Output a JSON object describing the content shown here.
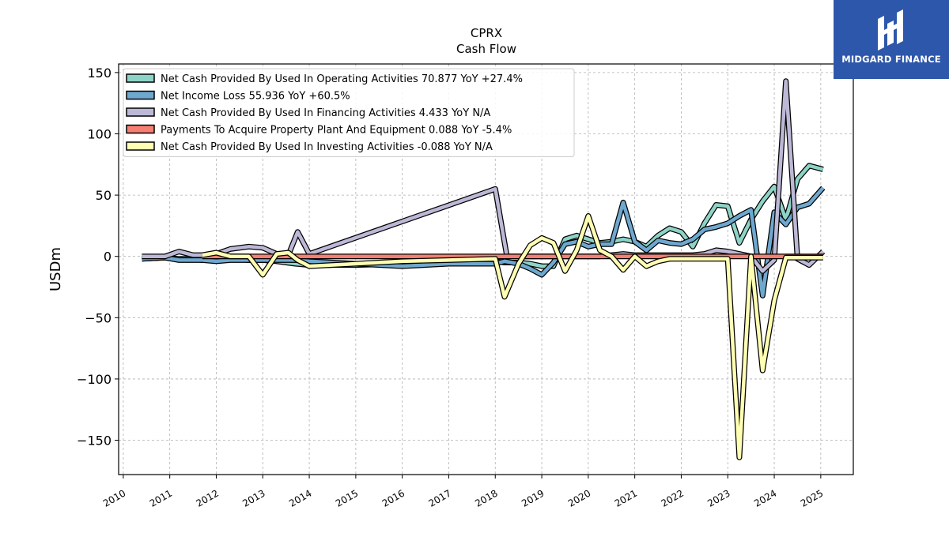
{
  "chart_data": {
    "type": "line",
    "title": "CPRX",
    "subtitle": "Cash Flow",
    "ylabel": "USDm",
    "xlabel": "",
    "xlim": [
      2009.9,
      2025.7
    ],
    "ylim": [
      -178,
      157
    ],
    "yticks": [
      -150,
      -100,
      -50,
      0,
      50,
      100,
      150
    ],
    "xticks": [
      2010,
      2011,
      2012,
      2013,
      2014,
      2015,
      2016,
      2017,
      2018,
      2019,
      2020,
      2021,
      2022,
      2023,
      2024,
      2025
    ],
    "grid": true,
    "legend_position": "top-left",
    "series": [
      {
        "name": "Net Cash Provided By Used In Operating Activities",
        "legend_label": "Net Cash Provided By Used In Operating Activities  70.877 YoY +27.4%",
        "color": "#8dd3c7",
        "x": [
          2010.4,
          2010.9,
          2011.2,
          2011.5,
          2011.7,
          2012.0,
          2012.3,
          2012.7,
          2013.0,
          2013.3,
          2013.7,
          2014.0,
          2015.0,
          2016.0,
          2017.0,
          2018.0,
          2018.2,
          2018.5,
          2018.75,
          2019.0,
          2019.25,
          2019.5,
          2019.75,
          2020.0,
          2020.25,
          2020.5,
          2020.75,
          2021.0,
          2021.25,
          2021.5,
          2021.75,
          2022.0,
          2022.25,
          2022.5,
          2022.75,
          2023.0,
          2023.25,
          2023.5,
          2023.75,
          2024.0,
          2024.25,
          2024.5,
          2024.75,
          2025.05
        ],
        "values": [
          -2,
          -1,
          -2,
          -2,
          -3,
          -3,
          -2,
          -3,
          -3,
          -4,
          -6,
          -7,
          -7,
          -6,
          -5,
          -4,
          -5,
          -5,
          -6,
          -8,
          -8,
          14,
          17,
          14,
          11,
          12,
          14,
          12,
          8,
          17,
          23,
          20,
          8,
          27,
          42,
          41,
          11,
          30,
          45,
          57,
          30,
          63,
          74,
          71
        ]
      },
      {
        "name": "Net Income Loss",
        "legend_label": "Net Income Loss  55.936 YoY +60.5%",
        "color": "#6fa8cf",
        "x": [
          2010.4,
          2010.9,
          2011.2,
          2011.5,
          2011.7,
          2012.0,
          2012.3,
          2012.7,
          2013.0,
          2013.3,
          2013.7,
          2014.0,
          2015.0,
          2016.0,
          2017.0,
          2018.0,
          2018.2,
          2018.5,
          2018.75,
          2019.0,
          2019.25,
          2019.5,
          2019.75,
          2020.0,
          2020.25,
          2020.5,
          2020.75,
          2021.0,
          2021.25,
          2021.5,
          2021.75,
          2022.0,
          2022.25,
          2022.5,
          2022.75,
          2023.0,
          2023.25,
          2023.5,
          2023.75,
          2024.0,
          2024.25,
          2024.5,
          2024.75,
          2025.05
        ],
        "values": [
          -2,
          -1,
          -3,
          -3,
          -3,
          -4,
          -3,
          -3,
          -3,
          -3,
          -3,
          -4,
          -6,
          -8,
          -6,
          -6,
          -4,
          -6,
          -10,
          -15,
          -5,
          10,
          12,
          8,
          10,
          10,
          44,
          12,
          5,
          13,
          11,
          10,
          14,
          22,
          24,
          27,
          33,
          38,
          -32,
          36,
          26,
          40,
          43,
          56
        ]
      },
      {
        "name": "Net Cash Provided By Used In Financing Activities",
        "legend_label": "Net Cash Provided By Used In Financing Activities  4.433 YoY N/A",
        "color": "#bcb8d6",
        "x": [
          2010.4,
          2010.9,
          2011.2,
          2011.5,
          2011.7,
          2012.0,
          2012.3,
          2012.7,
          2013.0,
          2013.3,
          2013.55,
          2013.75,
          2014.0,
          2018.0,
          2018.25,
          2018.5,
          2018.75,
          2019.0,
          2019.25,
          2019.5,
          2019.75,
          2020.0,
          2020.25,
          2020.5,
          2020.75,
          2021.0,
          2021.25,
          2021.5,
          2021.75,
          2022.0,
          2022.25,
          2022.5,
          2022.75,
          2023.0,
          2023.25,
          2023.5,
          2023.75,
          2024.0,
          2024.25,
          2024.5,
          2024.75,
          2025.05
        ],
        "values": [
          0,
          0,
          4,
          1,
          1,
          2,
          6,
          8,
          7,
          2,
          1,
          20,
          2,
          55,
          0,
          0,
          0,
          0,
          0,
          0,
          0,
          0,
          0,
          1,
          2,
          1,
          1,
          1,
          1,
          1,
          1,
          2,
          5,
          4,
          2,
          0,
          -12,
          -3,
          143,
          -2,
          -7,
          4
        ]
      },
      {
        "name": "Payments To Acquire Property Plant And Equipment",
        "legend_label": "Payments To Acquire Property Plant And Equipment  0.088 YoY -5.4%",
        "color": "#f47f72",
        "x": [
          2011.7,
          2025.05
        ],
        "values": [
          0,
          0
        ]
      },
      {
        "name": "Net Cash Provided By Used In Investing Activities",
        "legend_label": "Net Cash Provided By Used In Investing Activities  -0.088 YoY N/A",
        "color": "#ffffb3",
        "x": [
          2011.7,
          2012.0,
          2012.3,
          2012.7,
          2013.0,
          2013.3,
          2013.55,
          2013.75,
          2014.0,
          2015.0,
          2016.0,
          2017.0,
          2018.0,
          2018.2,
          2018.5,
          2018.75,
          2019.0,
          2019.25,
          2019.5,
          2019.75,
          2020.0,
          2020.25,
          2020.5,
          2020.75,
          2021.0,
          2021.25,
          2021.5,
          2021.75,
          2022.0,
          2022.25,
          2022.5,
          2022.75,
          2023.0,
          2023.25,
          2023.5,
          2023.75,
          2024.0,
          2024.25,
          2024.5,
          2024.75,
          2025.05
        ],
        "values": [
          1,
          3,
          0,
          0,
          -15,
          2,
          3,
          -3,
          -8,
          -6,
          -4,
          -3,
          -2,
          -33,
          -6,
          9,
          15,
          11,
          -12,
          5,
          33,
          5,
          0,
          -11,
          0,
          -8,
          -4,
          -2,
          -2,
          -2,
          -2,
          -2,
          -2,
          -164,
          0,
          -93,
          -36,
          -1,
          -1,
          -1,
          -1
        ]
      }
    ]
  },
  "brand": {
    "name": "MIDGARD FINANCE",
    "background": "#2d57aa"
  }
}
